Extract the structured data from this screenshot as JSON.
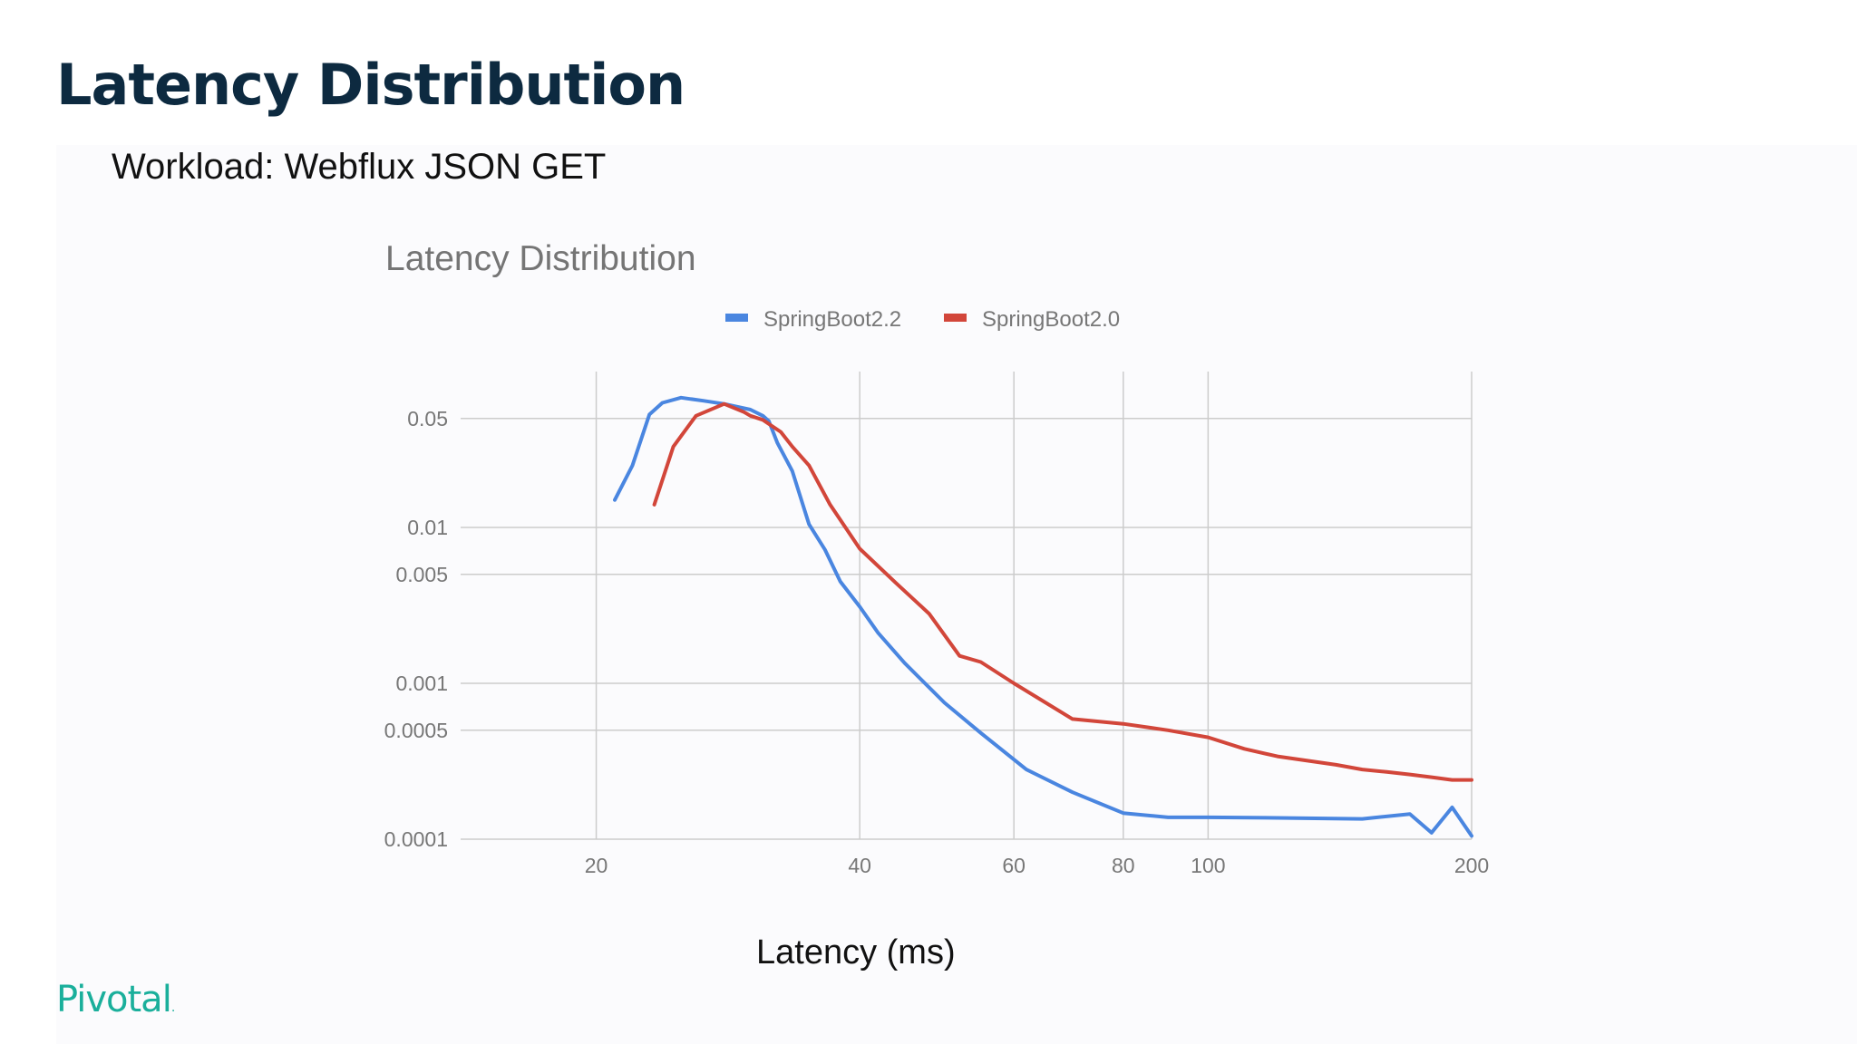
{
  "slide": {
    "title": "Latency Distribution",
    "subtitle": "Workload: Webflux JSON GET",
    "x_axis_label": "Latency (ms)",
    "logo_text": "Pivotal",
    "logo_mark": "."
  },
  "colors": {
    "title": "#0d2a40",
    "logo": "#1aaf9b",
    "series_a": "#4a86e0",
    "series_b": "#d2463a",
    "grid": "#cccccc",
    "tick_text": "#777777"
  },
  "chart_data": {
    "type": "line",
    "title": "Latency Distribution",
    "xlabel": "",
    "ylabel": "",
    "x_scale": "log",
    "y_scale": "log",
    "xlim": [
      14,
      200
    ],
    "ylim": [
      0.0001,
      0.1
    ],
    "grid": true,
    "legend_position": "top",
    "x_ticks": [
      {
        "value": 20,
        "label": "20"
      },
      {
        "value": 40,
        "label": "40"
      },
      {
        "value": 60,
        "label": "60"
      },
      {
        "value": 80,
        "label": "80"
      },
      {
        "value": 100,
        "label": "100"
      },
      {
        "value": 200,
        "label": "200"
      }
    ],
    "y_ticks": [
      {
        "value": 0.05,
        "label": "0.05"
      },
      {
        "value": 0.01,
        "label": "0.01"
      },
      {
        "value": 0.005,
        "label": "0.005"
      },
      {
        "value": 0.001,
        "label": "0.001"
      },
      {
        "value": 0.0005,
        "label": "0.0005"
      },
      {
        "value": 0.0001,
        "label": "0.0001"
      }
    ],
    "series": [
      {
        "name": "SpringBoot2.2",
        "color": "#4a86e0",
        "x": [
          21,
          22,
          23,
          23.8,
          25,
          26.5,
          28,
          30,
          31,
          31.5,
          32.2,
          33.5,
          35,
          36.5,
          38,
          40,
          42,
          45,
          50,
          55,
          62,
          70,
          80,
          90,
          100,
          120,
          150,
          170,
          180,
          190,
          200
        ],
        "y": [
          0.015,
          0.025,
          0.053,
          0.063,
          0.068,
          0.065,
          0.062,
          0.057,
          0.052,
          0.048,
          0.035,
          0.023,
          0.0105,
          0.0072,
          0.0045,
          0.0031,
          0.0021,
          0.00135,
          0.00075,
          0.00048,
          0.00028,
          0.0002,
          0.000147,
          0.000138,
          0.000138,
          0.000137,
          0.000135,
          0.000145,
          0.00011,
          0.00016,
          0.000105
        ]
      },
      {
        "name": "SpringBoot2.0",
        "color": "#d2463a",
        "x": [
          23.3,
          24.5,
          26,
          28,
          29.5,
          30,
          31,
          32.5,
          33.5,
          35,
          37,
          40,
          44,
          48,
          52,
          55,
          60,
          70,
          80,
          90,
          100,
          110,
          120,
          140,
          150,
          160,
          170,
          180,
          190,
          200
        ],
        "y": [
          0.014,
          0.033,
          0.052,
          0.062,
          0.055,
          0.052,
          0.049,
          0.041,
          0.033,
          0.025,
          0.014,
          0.0073,
          0.0044,
          0.0028,
          0.0015,
          0.00137,
          0.001,
          0.00059,
          0.00055,
          0.0005,
          0.00045,
          0.00038,
          0.00034,
          0.0003,
          0.00028,
          0.00027,
          0.00026,
          0.00025,
          0.00024,
          0.00024
        ]
      }
    ]
  }
}
